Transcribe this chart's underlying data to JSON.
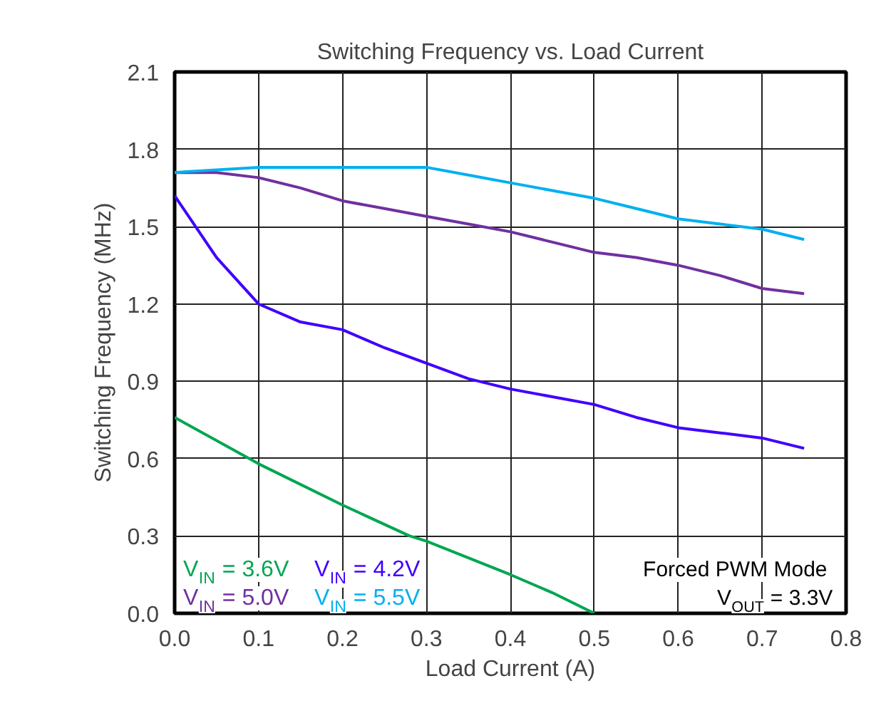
{
  "chart_data": {
    "type": "line",
    "title": "Switching Frequency vs. Load Current",
    "xlabel": "Load Current (A)",
    "ylabel": "Switching Frequency (MHz)",
    "x": [
      0,
      0.05,
      0.1,
      0.15,
      0.2,
      0.25,
      0.3,
      0.35,
      0.4,
      0.45,
      0.5,
      0.55,
      0.6,
      0.65,
      0.7,
      0.75
    ],
    "series": [
      {
        "name": "V$_{IN}$ = 3.6V",
        "color": "#00a651",
        "x": [
          0,
          0.1,
          0.2,
          0.28,
          0.3,
          0.4,
          0.45,
          0.5
        ],
        "values": [
          0.76,
          0.58,
          0.42,
          0.3,
          0.28,
          0.15,
          0.08,
          0.0
        ]
      },
      {
        "name": "V$_{IN}$ = 4.2V",
        "color": "#3f00ff",
        "values": [
          1.62,
          1.38,
          1.2,
          1.13,
          1.1,
          1.03,
          0.97,
          0.91,
          0.87,
          0.84,
          0.81,
          0.76,
          0.72,
          0.7,
          0.68,
          0.64
        ]
      },
      {
        "name": "V$_{IN}$ = 5.0V",
        "color": "#7030a0",
        "values": [
          1.71,
          1.71,
          1.69,
          1.65,
          1.6,
          1.57,
          1.54,
          1.51,
          1.48,
          1.44,
          1.4,
          1.38,
          1.35,
          1.31,
          1.26,
          1.24
        ]
      },
      {
        "name": "V$_{IN}$ = 5.5V",
        "color": "#00b0f0",
        "values": [
          1.71,
          1.72,
          1.73,
          1.73,
          1.73,
          1.73,
          1.73,
          1.7,
          1.67,
          1.64,
          1.61,
          1.57,
          1.53,
          1.51,
          1.49,
          1.45
        ]
      }
    ],
    "annotations": [
      "Forced PWM Mode",
      "V$_{OUT}$ = 3.3V"
    ],
    "xlim": [
      0,
      0.8
    ],
    "xticks": [
      {
        "value": 0,
        "label": "0.0"
      },
      0.1,
      0.2,
      0.3,
      0.4,
      0.5,
      0.6,
      0.7,
      0.8
    ],
    "ylim": [
      0,
      2.1
    ],
    "yticks": [
      {
        "value": 0,
        "label": "0.0"
      },
      0.3,
      0.6,
      0.9,
      1.2,
      1.5,
      1.8,
      2.1
    ],
    "grid": true,
    "legend": "bottom left",
    "line_style": "solid",
    "marker": "none"
  }
}
